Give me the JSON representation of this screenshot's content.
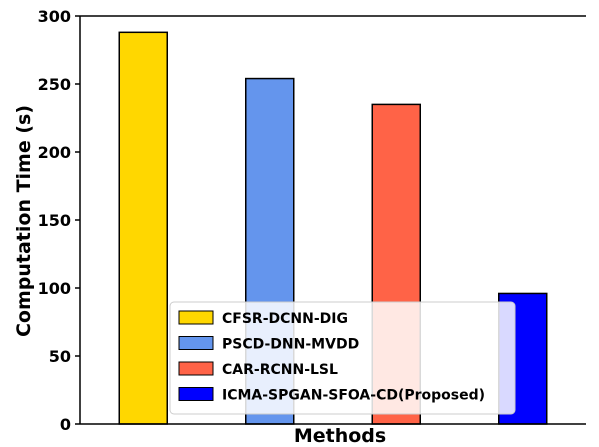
{
  "chart_data": {
    "type": "bar",
    "title": "",
    "xlabel": "Methods",
    "ylabel": "Computation Time (s)",
    "ylim": [
      0,
      300
    ],
    "yticks": [
      0,
      50,
      100,
      150,
      200,
      250,
      300
    ],
    "grid": false,
    "legend_position": "lower-center",
    "categories": [
      "CFSR-DCNN-DIG",
      "PSCD-DNN-MVDD",
      "CAR-RCNN-LSL",
      "ICMA-SPGAN-SFOA-CD(Proposed)"
    ],
    "values": [
      288,
      254,
      235,
      96
    ],
    "colors": [
      "#FFD700",
      "#6495ED",
      "#FF6347",
      "#0000FF"
    ],
    "legend": [
      {
        "label": "CFSR-DCNN-DIG",
        "color": "#FFD700"
      },
      {
        "label": "PSCD-DNN-MVDD",
        "color": "#6495ED"
      },
      {
        "label": "CAR-RCNN-LSL",
        "color": "#FF6347"
      },
      {
        "label": "ICMA-SPGAN-SFOA-CD(Proposed)",
        "color": "#0000FF"
      }
    ]
  }
}
